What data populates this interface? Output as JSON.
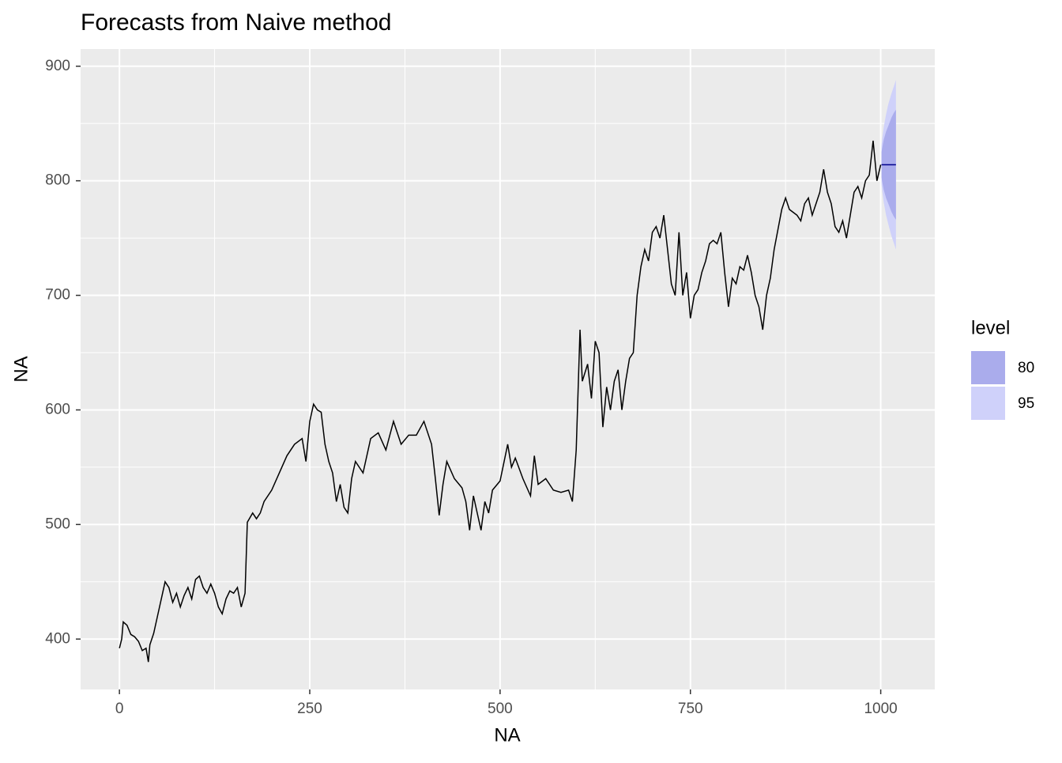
{
  "chart_data": {
    "type": "line",
    "title": "Forecasts from Naive method",
    "x_label": "NA",
    "y_label": "NA",
    "xlim": [
      -51,
      1071
    ],
    "ylim": [
      356,
      915
    ],
    "xticks": [
      0,
      250,
      500,
      750,
      1000
    ],
    "yticks": [
      400,
      500,
      600,
      700,
      800,
      900
    ],
    "xminorticks": [
      125,
      375,
      625,
      875
    ],
    "yminorticks": [
      450,
      550,
      650,
      750,
      850
    ],
    "grid": true,
    "color": "#000000",
    "x": [
      0,
      3,
      5,
      10,
      15,
      20,
      25,
      30,
      35,
      38,
      40,
      45,
      50,
      55,
      60,
      65,
      70,
      75,
      80,
      85,
      90,
      95,
      100,
      105,
      110,
      115,
      120,
      125,
      130,
      135,
      140,
      145,
      150,
      155,
      160,
      165,
      168,
      175,
      180,
      185,
      190,
      200,
      210,
      220,
      230,
      240,
      245,
      250,
      255,
      260,
      265,
      270,
      275,
      280,
      285,
      290,
      295,
      300,
      305,
      310,
      315,
      320,
      330,
      340,
      350,
      360,
      370,
      380,
      390,
      400,
      410,
      415,
      420,
      425,
      430,
      440,
      450,
      455,
      460,
      465,
      470,
      475,
      480,
      485,
      490,
      500,
      510,
      515,
      520,
      530,
      540,
      545,
      550,
      560,
      570,
      580,
      590,
      595,
      600,
      605,
      608,
      615,
      620,
      625,
      630,
      635,
      640,
      645,
      650,
      655,
      660,
      665,
      670,
      675,
      680,
      685,
      690,
      695,
      700,
      705,
      710,
      715,
      720,
      725,
      730,
      735,
      740,
      745,
      750,
      755,
      760,
      765,
      770,
      775,
      780,
      785,
      790,
      795,
      800,
      805,
      810,
      815,
      820,
      825,
      830,
      835,
      840,
      845,
      850,
      855,
      860,
      870,
      875,
      880,
      890,
      895,
      900,
      905,
      910,
      915,
      920,
      925,
      930,
      935,
      940,
      945,
      950,
      955,
      960,
      965,
      970,
      975,
      980,
      985,
      990,
      995,
      1000
    ],
    "values": [
      392,
      400,
      415,
      412,
      404,
      402,
      398,
      390,
      392,
      380,
      395,
      405,
      420,
      435,
      450,
      445,
      432,
      440,
      428,
      438,
      445,
      435,
      452,
      455,
      445,
      440,
      448,
      440,
      428,
      422,
      435,
      442,
      440,
      445,
      428,
      440,
      502,
      510,
      505,
      510,
      520,
      530,
      545,
      560,
      570,
      575,
      555,
      590,
      605,
      600,
      598,
      570,
      555,
      545,
      520,
      535,
      515,
      510,
      540,
      555,
      550,
      545,
      575,
      580,
      565,
      590,
      570,
      578,
      578,
      590,
      570,
      540,
      508,
      535,
      555,
      540,
      532,
      520,
      495,
      525,
      510,
      495,
      520,
      510,
      530,
      538,
      570,
      550,
      558,
      540,
      525,
      560,
      535,
      540,
      530,
      528,
      530,
      520,
      565,
      670,
      625,
      640,
      610,
      660,
      650,
      585,
      620,
      600,
      625,
      635,
      600,
      625,
      645,
      650,
      700,
      725,
      740,
      730,
      755,
      760,
      750,
      770,
      740,
      710,
      700,
      755,
      700,
      720,
      680,
      700,
      705,
      720,
      730,
      745,
      748,
      745,
      755,
      720,
      690,
      715,
      710,
      725,
      722,
      735,
      720,
      700,
      690,
      670,
      700,
      715,
      740,
      775,
      785,
      775,
      770,
      765,
      780,
      785,
      770,
      780,
      790,
      810,
      790,
      780,
      760,
      755,
      765,
      750,
      770,
      790,
      795,
      785,
      800,
      805,
      835,
      800,
      814
    ],
    "forecast": {
      "color": "#00008b",
      "x": [
        1001,
        1002,
        1004,
        1007,
        1010,
        1014,
        1017,
        1020
      ],
      "values": [
        814,
        814,
        814,
        814,
        814,
        814,
        814,
        814
      ]
    },
    "legend_title": "level",
    "legend": "right",
    "bands": [
      {
        "name": "80",
        "color": "#aaacec",
        "lower": [
          803,
          799,
          792,
          785,
          780,
          773,
          769,
          766
        ],
        "upper": [
          825,
          829,
          836,
          843,
          848,
          855,
          859,
          862
        ]
      },
      {
        "name": "95",
        "color": "#cfd1fa",
        "lower": [
          797,
          791,
          781,
          770,
          762,
          752,
          746,
          740
        ],
        "upper": [
          831,
          837,
          847,
          858,
          867,
          876,
          882,
          888
        ]
      }
    ]
  }
}
